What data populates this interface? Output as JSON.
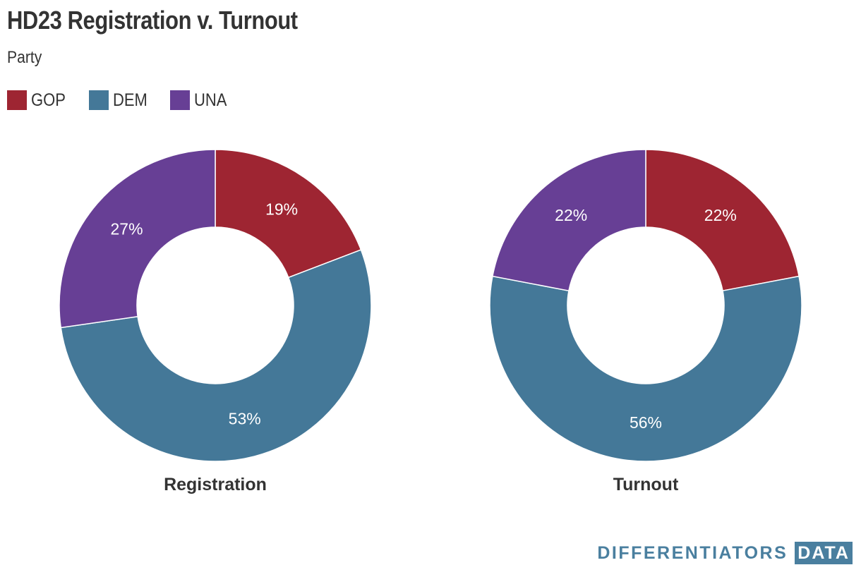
{
  "header": {
    "title": "HD23 Registration v. Turnout",
    "subtitle": "Party"
  },
  "legend": {
    "items": [
      {
        "label": "GOP",
        "color": "#9e2532"
      },
      {
        "label": "DEM",
        "color": "#447898"
      },
      {
        "label": "UNA",
        "color": "#673f95"
      }
    ]
  },
  "branding": {
    "name": "DIFFERENTIATORS",
    "box": "DATA"
  },
  "chart_data": [
    {
      "type": "pie",
      "variant": "donut",
      "title": "Registration",
      "slices": [
        {
          "label": "GOP",
          "value": 19,
          "display": "19%",
          "color": "#9e2532"
        },
        {
          "label": "DEM",
          "value": 53,
          "display": "53%",
          "color": "#447898"
        },
        {
          "label": "UNA",
          "value": 27,
          "display": "27%",
          "color": "#673f95"
        }
      ]
    },
    {
      "type": "pie",
      "variant": "donut",
      "title": "Turnout",
      "slices": [
        {
          "label": "GOP",
          "value": 22,
          "display": "22%",
          "color": "#9e2532"
        },
        {
          "label": "DEM",
          "value": 56,
          "display": "56%",
          "color": "#447898"
        },
        {
          "label": "UNA",
          "value": 22,
          "display": "22%",
          "color": "#673f95"
        }
      ]
    }
  ]
}
